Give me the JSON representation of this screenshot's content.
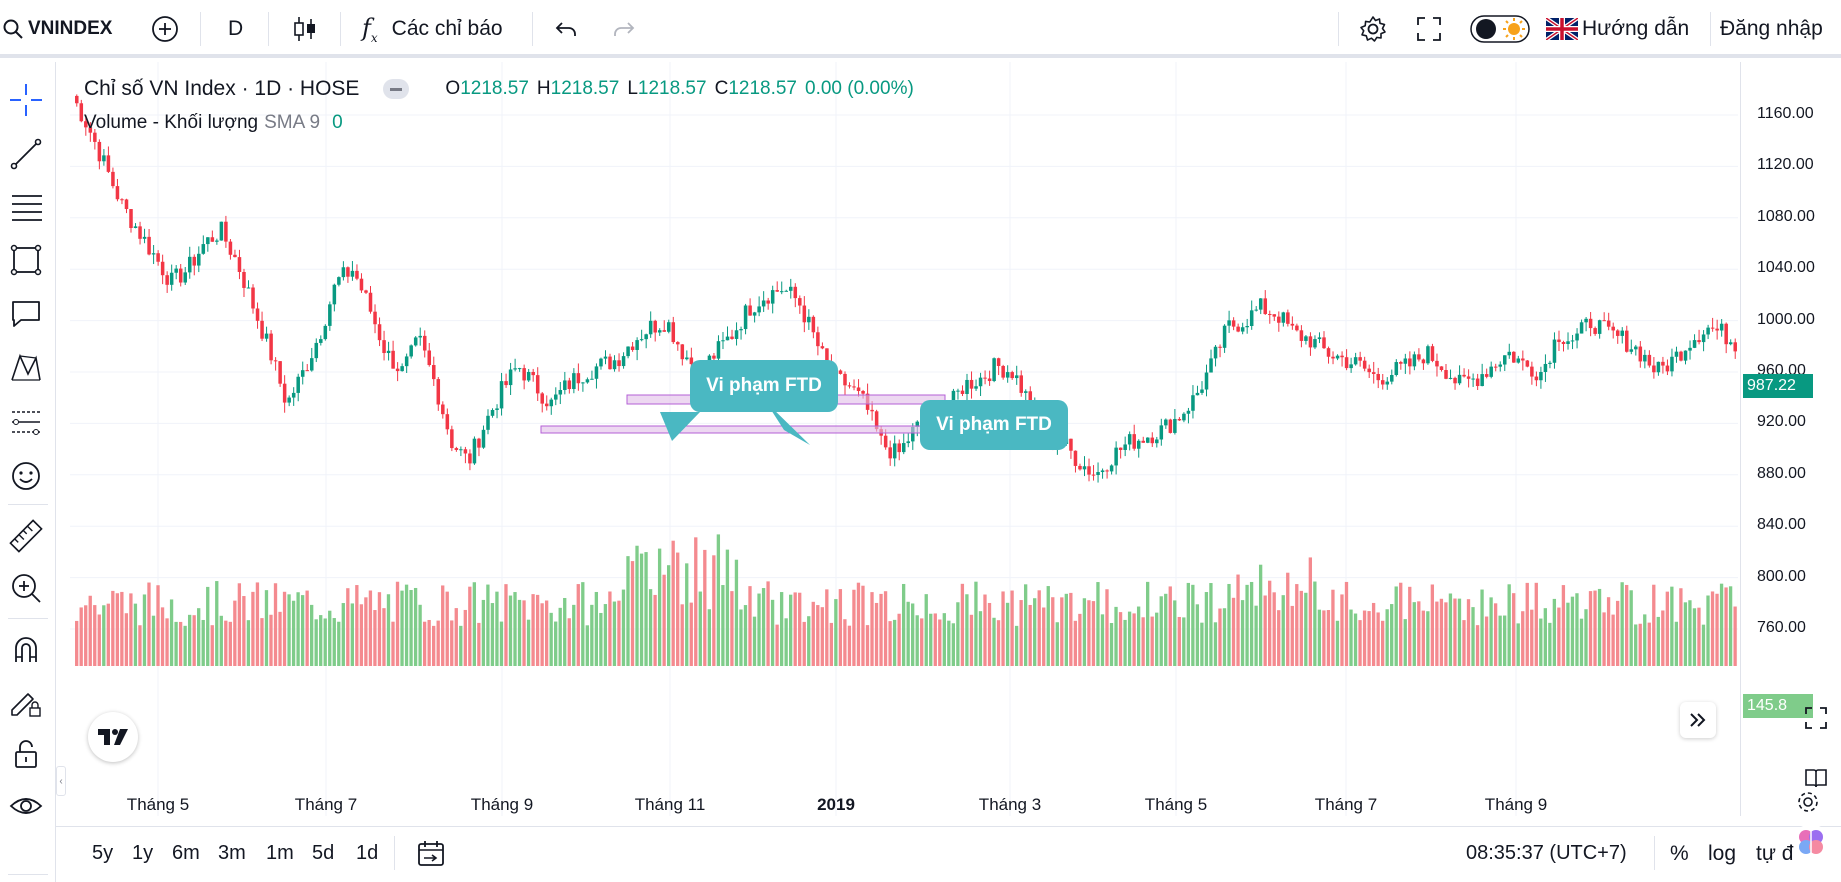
{
  "toolbar": {
    "symbol": "VNINDEX",
    "interval": "D",
    "indicators_label": "Các chỉ báo",
    "guide_label": "Hướng dẫn",
    "login_label": "Đăng nhập"
  },
  "legend": {
    "title": "Chỉ số VN Index · 1D · HOSE",
    "o_label": "O",
    "o_value": "1218.57",
    "h_label": "H",
    "h_value": "1218.57",
    "l_label": "L",
    "l_value": "1218.57",
    "c_label": "C",
    "c_value": "1218.57",
    "change": "0.00 (0.00%)",
    "volume_label": "Volume - Khối lượng",
    "sma_label": "SMA 9",
    "sma_value": "0"
  },
  "annotations": {
    "callout1": "Vi phạm FTD",
    "callout2": "Vi phạm FTD"
  },
  "price_axis": {
    "ticks": [
      "1160.00",
      "1120.00",
      "1080.00",
      "1040.00",
      "1000.00",
      "960.00",
      "920.00",
      "880.00",
      "840.00",
      "800.00",
      "760.00"
    ],
    "last_price": "987.22",
    "volume_tag": "145.8"
  },
  "time_axis": {
    "ticks": [
      "Tháng 5",
      "Tháng 7",
      "Tháng 9",
      "Tháng 11",
      "2019",
      "Tháng 3",
      "Tháng 5",
      "Tháng 7",
      "Tháng 9"
    ]
  },
  "bottom": {
    "ranges": [
      "5y",
      "1y",
      "6m",
      "3m",
      "1m",
      "5d",
      "1d"
    ],
    "clock": "08:35:37 (UTC+7)",
    "percent": "%",
    "log": "log",
    "auto": "tự đ"
  },
  "colors": {
    "up": "#089981",
    "down": "#f23645",
    "volume_up": "#7fcc8a",
    "volume_down": "#f48a8f",
    "callout": "#4ab8c2",
    "zone": "#e1bee7"
  },
  "chart_data": {
    "type": "candlestick",
    "ylim": [
      740,
      1180
    ],
    "x_labels": [
      "Tháng 5",
      "Tháng 7",
      "Tháng 9",
      "Tháng 11",
      "2019",
      "Tháng 3",
      "Tháng 5",
      "Tháng 7",
      "Tháng 9"
    ],
    "close_path": [
      1175,
      1150,
      1120,
      1090,
      1070,
      1050,
      1030,
      1040,
      1060,
      1070,
      1045,
      1010,
      975,
      935,
      960,
      990,
      1030,
      1040,
      1010,
      975,
      960,
      985,
      950,
      905,
      890,
      920,
      945,
      965,
      950,
      935,
      950,
      960,
      965,
      970,
      985,
      995,
      1000,
      975,
      960,
      975,
      990,
      1010,
      1020,
      1025,
      1015,
      985,
      955,
      950,
      935,
      905,
      895,
      915,
      925,
      930,
      950,
      955,
      965,
      960,
      935,
      910,
      905,
      890,
      880,
      895,
      905,
      910,
      915,
      925,
      940,
      965,
      995,
      1000,
      1010,
      1005,
      990,
      985,
      975,
      970,
      965,
      955,
      960,
      965,
      975,
      965,
      950,
      955,
      965,
      975,
      965,
      960,
      990,
      985,
      1000,
      990,
      985,
      975,
      960,
      970,
      985,
      995,
      990,
      980
    ],
    "zones": [
      {
        "label": "zone-upper",
        "price": 933
      },
      {
        "label": "zone-lower",
        "price": 912
      }
    ]
  }
}
